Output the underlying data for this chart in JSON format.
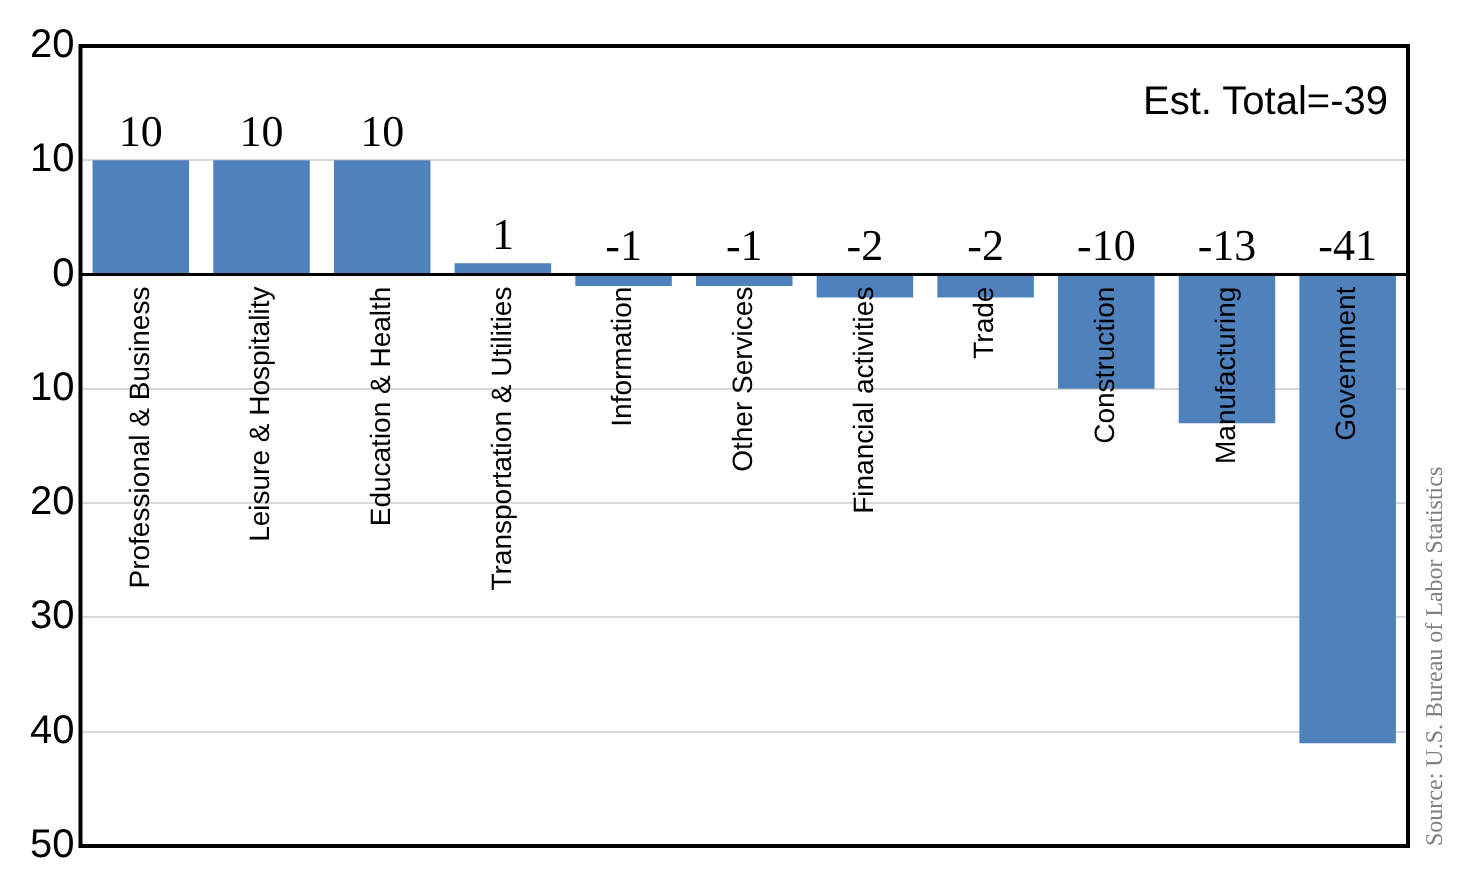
{
  "chart_data": {
    "type": "bar",
    "categories": [
      "Professional & Business",
      "Leisure & Hospitality",
      "Education & Health",
      "Transportation & Utilities",
      "Information",
      "Other Services",
      "Financial activities",
      "Trade",
      "Construction",
      "Manufacturing",
      "Government"
    ],
    "values": [
      10,
      10,
      10,
      1,
      -1,
      -1,
      -2,
      -2,
      -10,
      -13,
      -41
    ],
    "color": "#4f81bd",
    "ylim": [
      -50,
      20
    ],
    "yticks": [
      {
        "value": -50,
        "label": "50"
      },
      {
        "value": -40,
        "label": "40"
      },
      {
        "value": -30,
        "label": "30"
      },
      {
        "value": -20,
        "label": "20"
      },
      {
        "value": -10,
        "label": "10"
      },
      0,
      10,
      20
    ],
    "grid": "y",
    "legend": false,
    "data_labels": true,
    "annotations": [
      "Est. Total=-39",
      "Source: U.S. Bureau of Labor Statistics"
    ]
  }
}
